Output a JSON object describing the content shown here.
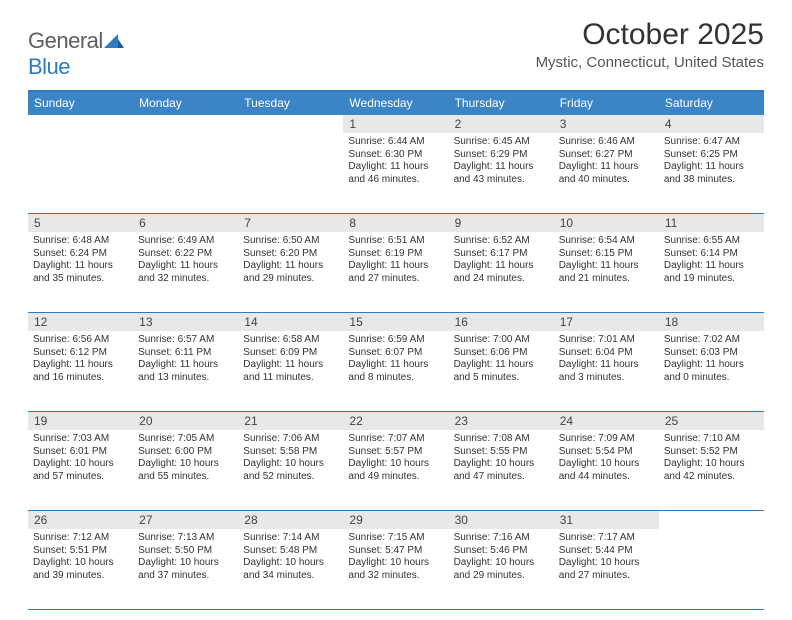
{
  "brand": {
    "word1": "General",
    "word2": "Blue"
  },
  "title": "October 2025",
  "location": "Mystic, Connecticut, United States",
  "colors": {
    "header_bg": "#3b85c6",
    "rule": "#2f7bbf",
    "daynum_bg": "#e8e8e8",
    "text": "#333333"
  },
  "columns": [
    "Sunday",
    "Monday",
    "Tuesday",
    "Wednesday",
    "Thursday",
    "Friday",
    "Saturday"
  ],
  "weeks": [
    [
      null,
      null,
      null,
      {
        "n": "1",
        "sr": "6:44 AM",
        "ss": "6:30 PM",
        "dl": "11 hours and 46 minutes."
      },
      {
        "n": "2",
        "sr": "6:45 AM",
        "ss": "6:29 PM",
        "dl": "11 hours and 43 minutes."
      },
      {
        "n": "3",
        "sr": "6:46 AM",
        "ss": "6:27 PM",
        "dl": "11 hours and 40 minutes."
      },
      {
        "n": "4",
        "sr": "6:47 AM",
        "ss": "6:25 PM",
        "dl": "11 hours and 38 minutes."
      }
    ],
    [
      {
        "n": "5",
        "sr": "6:48 AM",
        "ss": "6:24 PM",
        "dl": "11 hours and 35 minutes."
      },
      {
        "n": "6",
        "sr": "6:49 AM",
        "ss": "6:22 PM",
        "dl": "11 hours and 32 minutes."
      },
      {
        "n": "7",
        "sr": "6:50 AM",
        "ss": "6:20 PM",
        "dl": "11 hours and 29 minutes."
      },
      {
        "n": "8",
        "sr": "6:51 AM",
        "ss": "6:19 PM",
        "dl": "11 hours and 27 minutes."
      },
      {
        "n": "9",
        "sr": "6:52 AM",
        "ss": "6:17 PM",
        "dl": "11 hours and 24 minutes."
      },
      {
        "n": "10",
        "sr": "6:54 AM",
        "ss": "6:15 PM",
        "dl": "11 hours and 21 minutes."
      },
      {
        "n": "11",
        "sr": "6:55 AM",
        "ss": "6:14 PM",
        "dl": "11 hours and 19 minutes."
      }
    ],
    [
      {
        "n": "12",
        "sr": "6:56 AM",
        "ss": "6:12 PM",
        "dl": "11 hours and 16 minutes."
      },
      {
        "n": "13",
        "sr": "6:57 AM",
        "ss": "6:11 PM",
        "dl": "11 hours and 13 minutes."
      },
      {
        "n": "14",
        "sr": "6:58 AM",
        "ss": "6:09 PM",
        "dl": "11 hours and 11 minutes."
      },
      {
        "n": "15",
        "sr": "6:59 AM",
        "ss": "6:07 PM",
        "dl": "11 hours and 8 minutes."
      },
      {
        "n": "16",
        "sr": "7:00 AM",
        "ss": "6:06 PM",
        "dl": "11 hours and 5 minutes."
      },
      {
        "n": "17",
        "sr": "7:01 AM",
        "ss": "6:04 PM",
        "dl": "11 hours and 3 minutes."
      },
      {
        "n": "18",
        "sr": "7:02 AM",
        "ss": "6:03 PM",
        "dl": "11 hours and 0 minutes."
      }
    ],
    [
      {
        "n": "19",
        "sr": "7:03 AM",
        "ss": "6:01 PM",
        "dl": "10 hours and 57 minutes."
      },
      {
        "n": "20",
        "sr": "7:05 AM",
        "ss": "6:00 PM",
        "dl": "10 hours and 55 minutes."
      },
      {
        "n": "21",
        "sr": "7:06 AM",
        "ss": "5:58 PM",
        "dl": "10 hours and 52 minutes."
      },
      {
        "n": "22",
        "sr": "7:07 AM",
        "ss": "5:57 PM",
        "dl": "10 hours and 49 minutes."
      },
      {
        "n": "23",
        "sr": "7:08 AM",
        "ss": "5:55 PM",
        "dl": "10 hours and 47 minutes."
      },
      {
        "n": "24",
        "sr": "7:09 AM",
        "ss": "5:54 PM",
        "dl": "10 hours and 44 minutes."
      },
      {
        "n": "25",
        "sr": "7:10 AM",
        "ss": "5:52 PM",
        "dl": "10 hours and 42 minutes."
      }
    ],
    [
      {
        "n": "26",
        "sr": "7:12 AM",
        "ss": "5:51 PM",
        "dl": "10 hours and 39 minutes."
      },
      {
        "n": "27",
        "sr": "7:13 AM",
        "ss": "5:50 PM",
        "dl": "10 hours and 37 minutes."
      },
      {
        "n": "28",
        "sr": "7:14 AM",
        "ss": "5:48 PM",
        "dl": "10 hours and 34 minutes."
      },
      {
        "n": "29",
        "sr": "7:15 AM",
        "ss": "5:47 PM",
        "dl": "10 hours and 32 minutes."
      },
      {
        "n": "30",
        "sr": "7:16 AM",
        "ss": "5:46 PM",
        "dl": "10 hours and 29 minutes."
      },
      {
        "n": "31",
        "sr": "7:17 AM",
        "ss": "5:44 PM",
        "dl": "10 hours and 27 minutes."
      },
      null
    ]
  ],
  "labels": {
    "sunrise": "Sunrise:",
    "sunset": "Sunset:",
    "daylight": "Daylight:"
  }
}
